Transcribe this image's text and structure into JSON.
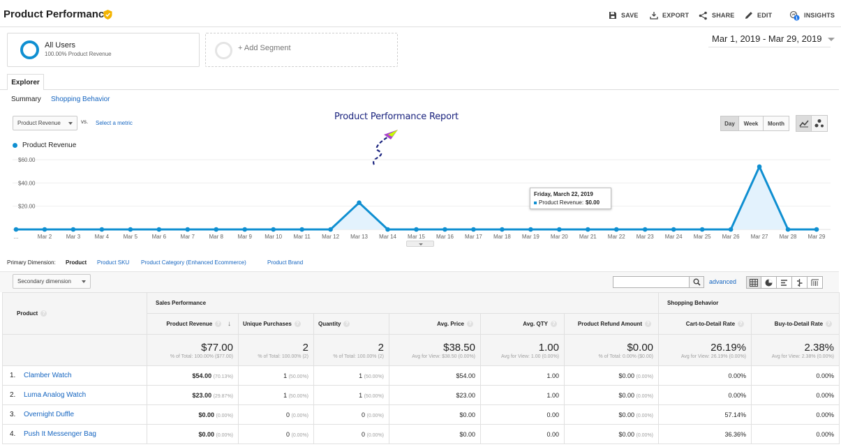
{
  "header": {
    "title": "Product Performance",
    "actions": {
      "save": "SAVE",
      "export": "EXPORT",
      "share": "SHARE",
      "edit": "EDIT",
      "insights": "INSIGHTS",
      "insights_badge": "1"
    }
  },
  "segments": {
    "all_users": {
      "name": "All Users",
      "sub": "100.00% Product Revenue"
    },
    "add": "+ Add Segment"
  },
  "date_range": "Mar 1, 2019 - Mar 29, 2019",
  "tabs": {
    "explorer": "Explorer"
  },
  "subtabs": {
    "summary": "Summary",
    "shopping": "Shopping Behavior"
  },
  "metric": {
    "selected": "Product Revenue",
    "vs": "vs.",
    "select_metric": "Select a metric"
  },
  "annotation": "Product Performance Report",
  "granularity": {
    "day": "Day",
    "week": "Week",
    "month": "Month"
  },
  "legend": {
    "label": "Product Revenue"
  },
  "tooltip": {
    "date": "Friday, March 22, 2019",
    "label": "Product Revenue:",
    "value": "$0.00"
  },
  "chart_data": {
    "type": "area",
    "x": [
      "...",
      "Mar 2",
      "Mar 3",
      "Mar 4",
      "Mar 5",
      "Mar 6",
      "Mar 7",
      "Mar 8",
      "Mar 9",
      "Mar 10",
      "Mar 11",
      "Mar 12",
      "Mar 13",
      "Mar 14",
      "Mar 15",
      "Mar 16",
      "Mar 17",
      "Mar 18",
      "Mar 19",
      "Mar 20",
      "Mar 21",
      "Mar 22",
      "Mar 23",
      "Mar 24",
      "Mar 25",
      "Mar 26",
      "Mar 27",
      "Mar 28",
      "Mar 29"
    ],
    "series": [
      {
        "name": "Product Revenue",
        "values": [
          0,
          0,
          0,
          0,
          0,
          0,
          0,
          0,
          0,
          0,
          0,
          0,
          23,
          0,
          0,
          0,
          0,
          0,
          0,
          0,
          0,
          0,
          0,
          0,
          0,
          0,
          54,
          0,
          0
        ]
      }
    ],
    "y_ticks": [
      "$20.00",
      "$40.00",
      "$60.00"
    ],
    "ylim": [
      0,
      60
    ],
    "color": "#0f8fd1",
    "fill": "#e3f2fd",
    "grid": true
  },
  "dimensions": {
    "label": "Primary Dimension:",
    "items": [
      "Product",
      "Product SKU",
      "Product Category (Enhanced Ecommerce)",
      "Product Brand"
    ],
    "secondary": "Secondary dimension",
    "advanced": "advanced"
  },
  "table": {
    "product_header": "Product",
    "groups": {
      "sales": "Sales Performance",
      "shopping": "Shopping Behavior"
    },
    "columns": [
      "Product Revenue",
      "Unique Purchases",
      "Quantity",
      "Avg. Price",
      "Avg. QTY",
      "Product Refund Amount",
      "Cart-to-Detail Rate",
      "Buy-to-Detail Rate"
    ],
    "totals": [
      {
        "value": "$77.00",
        "sub": "% of Total: 100.00% ($77.00)"
      },
      {
        "value": "2",
        "sub": "% of Total: 100.00% (2)"
      },
      {
        "value": "2",
        "sub": "% of Total: 100.00% (2)"
      },
      {
        "value": "$38.50",
        "sub": "Avg for View: $38.50 (0.00%)"
      },
      {
        "value": "1.00",
        "sub": "Avg for View: 1.00 (0.00%)"
      },
      {
        "value": "$0.00",
        "sub": "% of Total: 0.00% ($0.00)"
      },
      {
        "value": "26.19%",
        "sub": "Avg for View: 26.19% (0.00%)"
      },
      {
        "value": "2.38%",
        "sub": "Avg for View: 2.38% (0.00%)"
      }
    ],
    "rows": [
      {
        "num": "1.",
        "product": "Clamber Watch",
        "revenue": "$54.00",
        "revenue_pct": "(70.13%)",
        "unique": "1",
        "unique_pct": "(50.00%)",
        "qty": "1",
        "qty_pct": "(50.00%)",
        "avg_price": "$54.00",
        "avg_qty": "1.00",
        "refund": "$0.00",
        "refund_pct": "(0.00%)",
        "cart": "0.00%",
        "buy": "0.00%"
      },
      {
        "num": "2.",
        "product": "Luma Analog Watch",
        "revenue": "$23.00",
        "revenue_pct": "(29.87%)",
        "unique": "1",
        "unique_pct": "(50.00%)",
        "qty": "1",
        "qty_pct": "(50.00%)",
        "avg_price": "$23.00",
        "avg_qty": "1.00",
        "refund": "$0.00",
        "refund_pct": "(0.00%)",
        "cart": "0.00%",
        "buy": "0.00%"
      },
      {
        "num": "3.",
        "product": "Overnight Duffle",
        "revenue": "$0.00",
        "revenue_pct": "(0.00%)",
        "unique": "0",
        "unique_pct": "(0.00%)",
        "qty": "0",
        "qty_pct": "(0.00%)",
        "avg_price": "$0.00",
        "avg_qty": "0.00",
        "refund": "$0.00",
        "refund_pct": "(0.00%)",
        "cart": "57.14%",
        "buy": "0.00%"
      },
      {
        "num": "4.",
        "product": "Push It Messenger Bag",
        "revenue": "$0.00",
        "revenue_pct": "(0.00%)",
        "unique": "0",
        "unique_pct": "(0.00%)",
        "qty": "0",
        "qty_pct": "(0.00%)",
        "avg_price": "$0.00",
        "avg_qty": "0.00",
        "refund": "$0.00",
        "refund_pct": "(0.00%)",
        "cart": "36.36%",
        "buy": "0.00%"
      }
    ]
  }
}
